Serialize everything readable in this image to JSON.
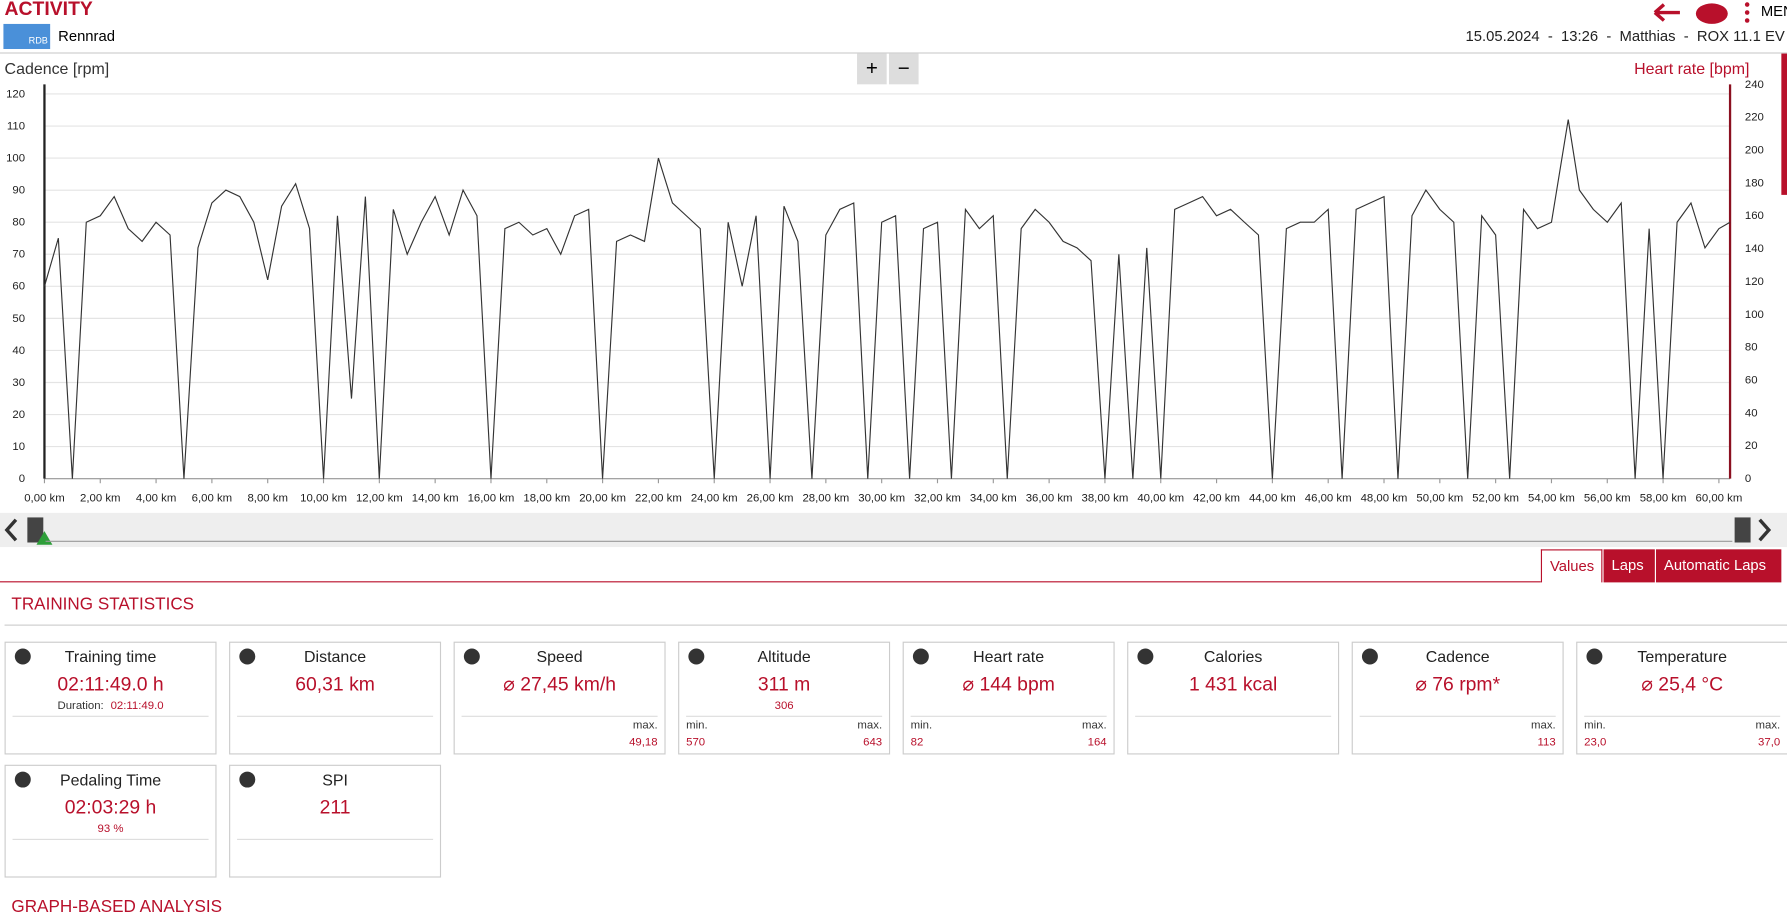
{
  "header": {
    "title": "ACTIVITY",
    "sport_badge": "RDB",
    "sport": "Rennrad",
    "info": "15.05.2024  -  13:26  -  Matthias  -  ROX 11.1 EV",
    "menu": "MEN"
  },
  "chart_controls": {
    "left_select": "Cadence [rpm]",
    "right_select": "Heart rate [bpm]",
    "zoom_in": "+",
    "zoom_out": "−"
  },
  "chart_data": {
    "type": "line",
    "x": [
      0,
      0.5,
      1,
      1.5,
      2,
      2.5,
      3,
      3.5,
      4,
      4.5,
      5,
      5.5,
      6,
      6.5,
      7,
      7.5,
      8,
      8.5,
      9,
      9.5,
      10,
      10.5,
      11,
      11.5,
      12,
      12.5,
      13,
      13.5,
      14,
      14.5,
      15,
      15.5,
      16,
      16.5,
      17,
      17.5,
      18,
      18.5,
      19,
      19.5,
      20,
      20.5,
      21,
      21.5,
      22,
      22.5,
      23,
      23.5,
      24,
      24.5,
      25,
      25.5,
      26,
      26.5,
      27,
      27.5,
      28,
      28.5,
      29,
      29.5,
      30,
      30.5,
      31,
      31.5,
      32,
      32.5,
      33,
      33.5,
      34,
      34.5,
      35,
      35.5,
      36,
      36.5,
      37,
      37.5,
      38,
      38.5,
      39,
      39.5,
      40,
      40.5,
      41,
      41.5,
      42,
      42.5,
      43,
      43.5,
      44,
      44.5,
      45,
      45.5,
      46,
      46.5,
      47,
      47.5,
      48,
      48.5,
      49,
      49.5,
      50,
      50.5,
      51,
      51.5,
      52,
      52.5,
      53,
      53.5,
      54,
      54.6,
      55,
      55.5,
      56,
      56.5,
      57,
      57.5,
      58,
      58.5,
      59,
      59.5,
      60,
      60.4
    ],
    "series": [
      {
        "name": "Cadence [rpm]",
        "color": "#333333",
        "values": [
          60,
          75,
          0,
          80,
          82,
          88,
          78,
          74,
          80,
          76,
          0,
          72,
          86,
          90,
          88,
          80,
          62,
          85,
          92,
          78,
          0,
          82,
          25,
          88,
          0,
          84,
          70,
          80,
          88,
          76,
          90,
          82,
          0,
          78,
          80,
          76,
          78,
          70,
          82,
          84,
          0,
          74,
          76,
          74,
          100,
          86,
          82,
          78,
          0,
          80,
          60,
          82,
          0,
          85,
          74,
          0,
          76,
          84,
          86,
          0,
          80,
          82,
          0,
          78,
          80,
          0,
          84,
          78,
          82,
          0,
          78,
          84,
          80,
          74,
          72,
          68,
          0,
          70,
          0,
          72,
          0,
          84,
          86,
          88,
          82,
          84,
          80,
          76,
          0,
          78,
          80,
          80,
          84,
          0,
          84,
          86,
          88,
          0,
          82,
          90,
          84,
          80,
          0,
          82,
          76,
          0,
          84,
          78,
          80,
          112,
          90,
          84,
          80,
          86,
          0,
          78,
          0,
          80,
          86,
          72,
          78,
          80
        ]
      }
    ],
    "xlim": [
      0,
      60.4
    ],
    "xticks": [
      {
        "value": 0,
        "label": "0,00 km"
      },
      {
        "value": 2,
        "label": "2,00 km"
      },
      {
        "value": 4,
        "label": "4,00 km"
      },
      {
        "value": 6,
        "label": "6,00 km"
      },
      {
        "value": 8,
        "label": "8,00 km"
      },
      {
        "value": 10,
        "label": "10,00 km"
      },
      {
        "value": 12,
        "label": "12,00 km"
      },
      {
        "value": 14,
        "label": "14,00 km"
      },
      {
        "value": 16,
        "label": "16,00 km"
      },
      {
        "value": 18,
        "label": "18,00 km"
      },
      {
        "value": 20,
        "label": "20,00 km"
      },
      {
        "value": 22,
        "label": "22,00 km"
      },
      {
        "value": 24,
        "label": "24,00 km"
      },
      {
        "value": 26,
        "label": "26,00 km"
      },
      {
        "value": 28,
        "label": "28,00 km"
      },
      {
        "value": 30,
        "label": "30,00 km"
      },
      {
        "value": 32,
        "label": "32,00 km"
      },
      {
        "value": 34,
        "label": "34,00 km"
      },
      {
        "value": 36,
        "label": "36,00 km"
      },
      {
        "value": 38,
        "label": "38,00 km"
      },
      {
        "value": 40,
        "label": "40,00 km"
      },
      {
        "value": 42,
        "label": "42,00 km"
      },
      {
        "value": 44,
        "label": "44,00 km"
      },
      {
        "value": 46,
        "label": "46,00 km"
      },
      {
        "value": 48,
        "label": "48,00 km"
      },
      {
        "value": 50,
        "label": "50,00 km"
      },
      {
        "value": 52,
        "label": "52,00 km"
      },
      {
        "value": 54,
        "label": "54,00 km"
      },
      {
        "value": 56,
        "label": "56,00 km"
      },
      {
        "value": 58,
        "label": "58,00 km"
      },
      {
        "value": 60,
        "label": "60,00 km"
      }
    ],
    "ylim": [
      0,
      123
    ],
    "yticks": [
      0,
      10,
      20,
      30,
      40,
      50,
      60,
      70,
      80,
      90,
      100,
      110,
      120
    ],
    "y2lim": [
      0,
      240
    ],
    "y2ticks": [
      0,
      20,
      40,
      60,
      80,
      100,
      120,
      140,
      160,
      180,
      200,
      220,
      240
    ],
    "grid": true
  },
  "tabs": [
    "Values",
    "Laps",
    "Automatic Laps"
  ],
  "sections": {
    "training_statistics": "TRAINING STATISTICS",
    "graph_analysis": "GRAPH-BASED ANALYSIS"
  },
  "stats": [
    {
      "title": "Training time",
      "value": "02:11:49.0 h",
      "sub_label": "Duration:",
      "sub": "02:11:49.0"
    },
    {
      "title": "Distance",
      "value": "60,31 km"
    },
    {
      "title": "Speed",
      "value": "⌀ 27,45 km/h",
      "max_label": "max.",
      "max": "49,18"
    },
    {
      "title": "Altitude",
      "value": "311 m",
      "sub": "306",
      "min_label": "min.",
      "min": "570",
      "max_label": "max.",
      "max": "643"
    },
    {
      "title": "Heart rate",
      "value": "⌀ 144 bpm",
      "min_label": "min.",
      "min": "82",
      "max_label": "max.",
      "max": "164"
    },
    {
      "title": "Calories",
      "value": "1 431 kcal"
    },
    {
      "title": "Cadence",
      "value": "⌀ 76 rpm*",
      "max_label": "max.",
      "max": "113"
    },
    {
      "title": "Temperature",
      "value": "⌀ 25,4 °C",
      "min_label": "min.",
      "min": "23,0",
      "max_label": "max.",
      "max": "37,0"
    },
    {
      "title": "Pedaling Time",
      "value": "02:03:29 h",
      "sub": "93 %"
    },
    {
      "title": "SPI",
      "value": "211"
    }
  ]
}
